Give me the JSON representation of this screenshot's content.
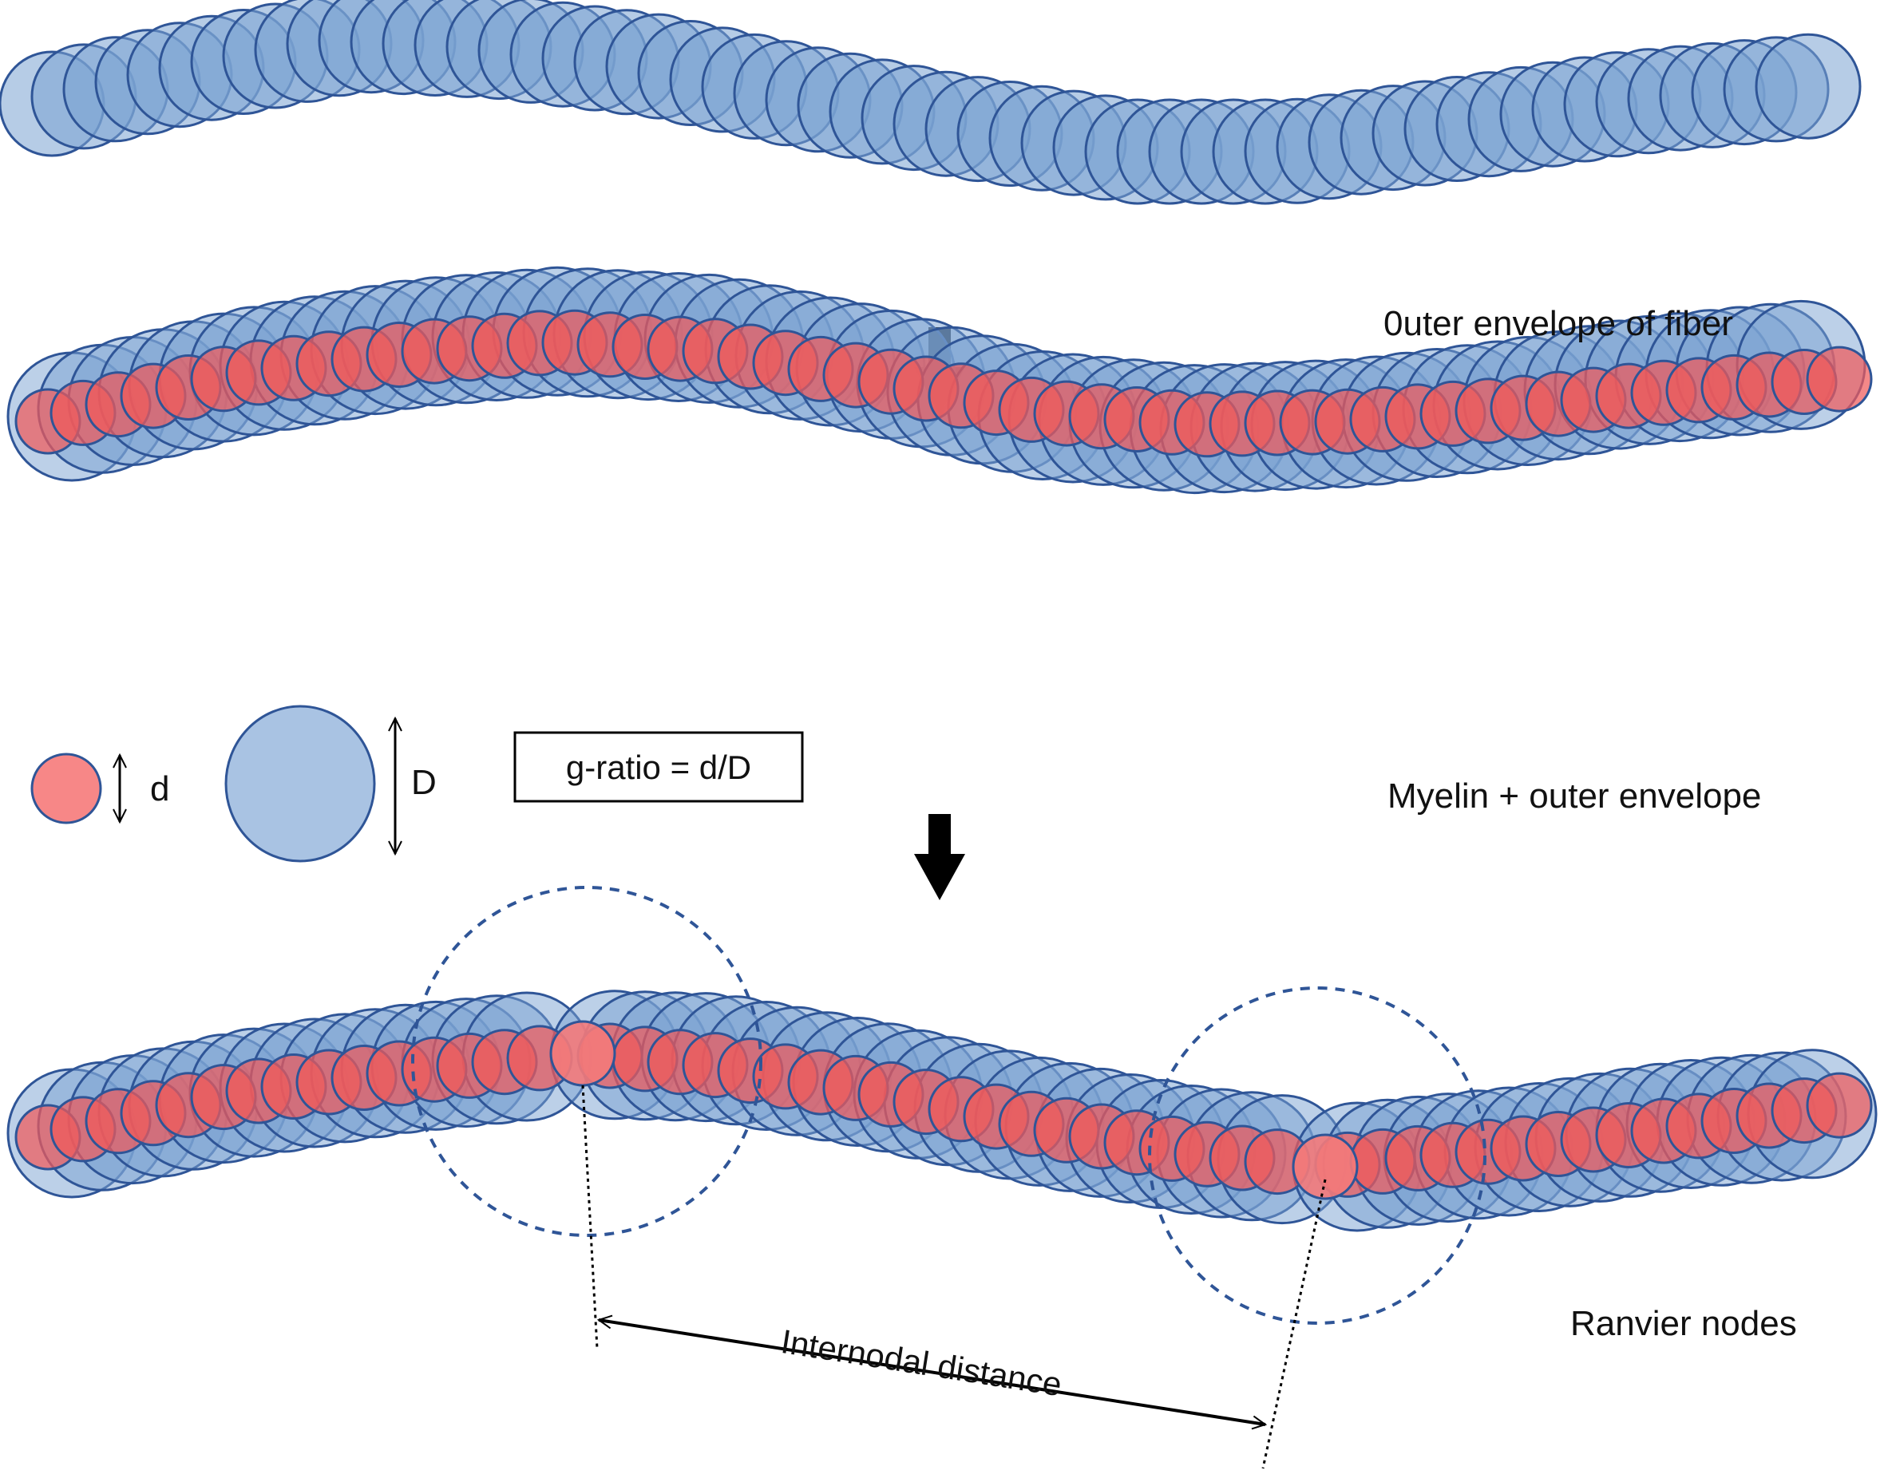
{
  "labels": {
    "outer_envelope": "0uter envelope of fiber",
    "myelin_outer": "Myelin + outer envelope",
    "ranvier_nodes": "Ranvier nodes"
  },
  "legend": {
    "axon_symbol": "d",
    "fiber_symbol": "D",
    "formula": "g-ratio = d/D"
  },
  "annotation": {
    "internodal_distance": "Internodal distance"
  },
  "colors": {
    "outer_fill": "#7aa2d2",
    "outer_stroke": "#2f5597",
    "axon_fill": "#f05a5a",
    "axon_stroke": "#2f5597",
    "node_fill": "#f47a7a",
    "dashed_circle": "#2f5597",
    "arrow": "#000000"
  },
  "icons": [
    "down-arrow-icon",
    "double-headed-arrow-icon"
  ]
}
